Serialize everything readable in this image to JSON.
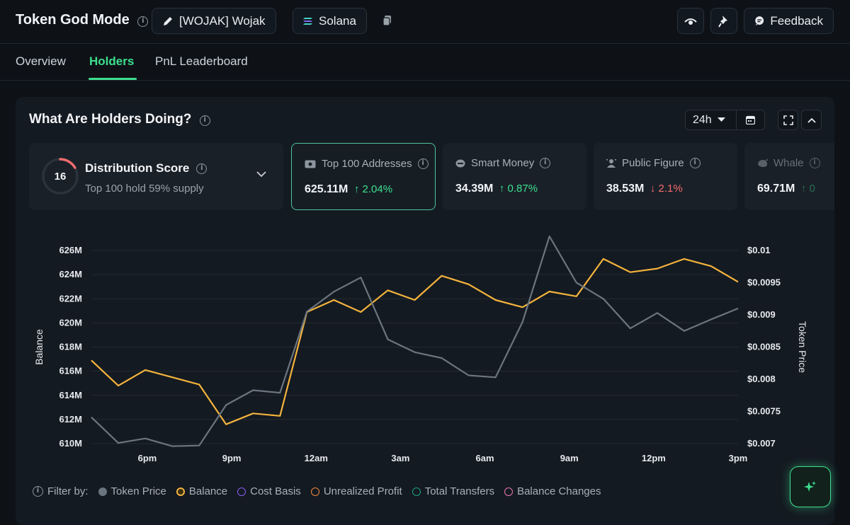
{
  "header": {
    "title": "Token God Mode",
    "token_label": "[WOJAK] Wojak",
    "chain_label": "Solana",
    "feedback_label": "Feedback"
  },
  "tabs": [
    {
      "label": "Overview",
      "active": false
    },
    {
      "label": "Holders",
      "active": true
    },
    {
      "label": "PnL Leaderboard",
      "active": false
    }
  ],
  "panel": {
    "title": "What Are Holders Doing?",
    "timeframe": "24h"
  },
  "distribution": {
    "score": "16",
    "title": "Distribution Score",
    "subtitle": "Top 100 hold 59% supply"
  },
  "cards": [
    {
      "label": "Top 100 Addresses",
      "value": "625.11M",
      "delta": "2.04%",
      "direction": "up",
      "icon": "wallet-icon"
    },
    {
      "label": "Smart Money",
      "value": "34.39M",
      "delta": "0.87%",
      "direction": "up",
      "icon": "brain-icon"
    },
    {
      "label": "Public Figure",
      "value": "38.53M",
      "delta": "2.1%",
      "direction": "down",
      "icon": "person-icon"
    },
    {
      "label": "Whale",
      "value": "69.71M",
      "delta": "0",
      "direction": "up",
      "icon": "whale-icon"
    }
  ],
  "filter": {
    "label": "Filter by:",
    "items": [
      {
        "label": "Token Price",
        "color": "#6b7580",
        "filled": true
      },
      {
        "label": "Balance",
        "color": "#f3b33d",
        "filled": false
      },
      {
        "label": "Cost Basis",
        "color": "#8b5cf6",
        "filled": false
      },
      {
        "label": "Unrealized Profit",
        "color": "#f0883e",
        "filled": false
      },
      {
        "label": "Total Transfers",
        "color": "#1f9e8a",
        "filled": false
      },
      {
        "label": "Balance Changes",
        "color": "#e879b5",
        "filled": false
      }
    ]
  },
  "colors": {
    "accent": "#3ee08f",
    "balance_line": "#f3b33d",
    "price_line": "#6b7580"
  },
  "chart_data": {
    "type": "line",
    "xlabel": "",
    "ylabel": "Balance",
    "y2label": "Token Price",
    "x_ticks": [
      "6pm",
      "9pm",
      "12am",
      "3am",
      "6am",
      "9am",
      "12pm",
      "3pm"
    ],
    "y_ticks": [
      "610M",
      "612M",
      "614M",
      "616M",
      "618M",
      "620M",
      "622M",
      "624M",
      "626M"
    ],
    "y2_ticks": [
      "$0.007",
      "$0.0075",
      "$0.008",
      "$0.0085",
      "$0.009",
      "$0.0095",
      "$0.01"
    ],
    "ylim": [
      610,
      626
    ],
    "y2lim": [
      0.007,
      0.01
    ],
    "x_range": [
      0,
      24
    ],
    "series": [
      {
        "name": "Balance",
        "axis": "left",
        "x": [
          0,
          1,
          2,
          3,
          4,
          5,
          6,
          7,
          8,
          9,
          10,
          11,
          12,
          13,
          14,
          15,
          16,
          17,
          18,
          19,
          20,
          21,
          22,
          23,
          24
        ],
        "values": [
          616.9,
          614.8,
          616.1,
          615.5,
          614.9,
          611.6,
          612.5,
          612.3,
          620.9,
          621.9,
          620.9,
          622.7,
          621.9,
          623.9,
          623.2,
          621.9,
          621.3,
          622.6,
          622.2,
          625.3,
          624.2,
          624.5,
          625.3,
          624.7,
          623.4
        ],
        "unit": "M"
      },
      {
        "name": "Token Price",
        "axis": "right",
        "x": [
          0,
          1,
          2,
          3,
          4,
          5,
          6,
          7,
          8,
          9,
          10,
          11,
          12,
          13,
          14,
          15,
          16,
          17,
          18,
          19,
          20,
          21,
          22,
          23,
          24
        ],
        "values": [
          0.00741,
          0.00701,
          0.00708,
          0.00696,
          0.00697,
          0.0076,
          0.00783,
          0.00779,
          0.00905,
          0.00936,
          0.00958,
          0.00862,
          0.00842,
          0.00833,
          0.00806,
          0.00803,
          0.00889,
          0.01022,
          0.0095,
          0.00925,
          0.00879,
          0.00903,
          0.00875,
          0.00893,
          0.0091
        ]
      }
    ]
  }
}
